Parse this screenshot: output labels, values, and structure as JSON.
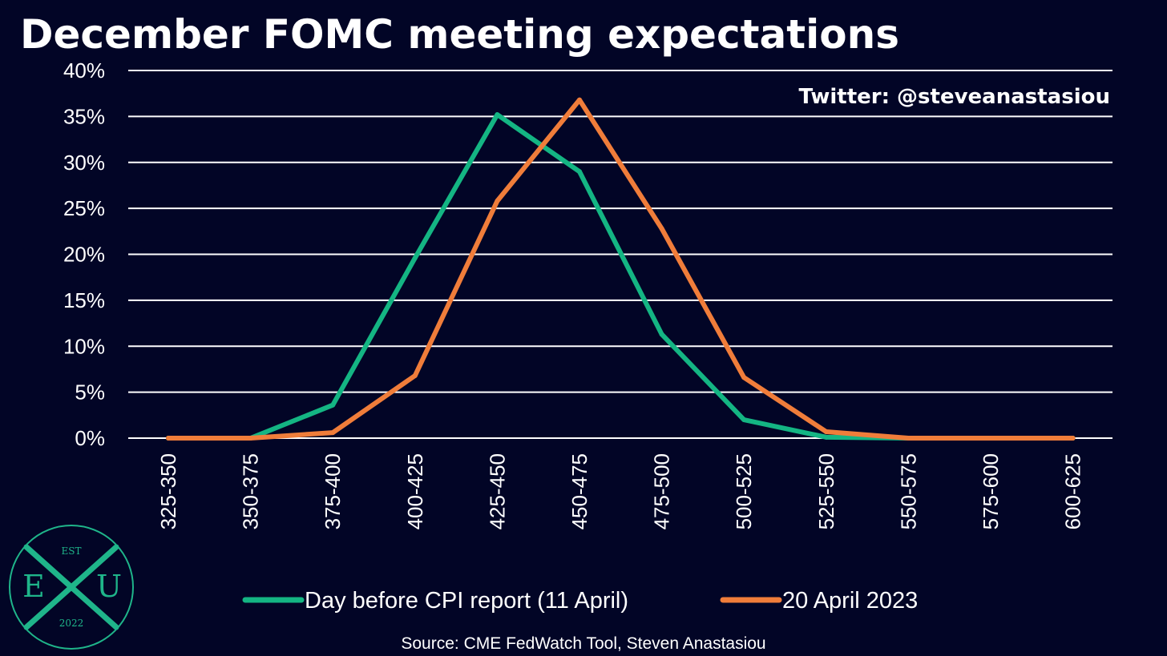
{
  "chart_data": {
    "type": "line",
    "title": "December FOMC meeting expectations",
    "categories": [
      "325-350",
      "350-375",
      "375-400",
      "400-425",
      "425-450",
      "450-475",
      "475-500",
      "500-525",
      "525-550",
      "550-575",
      "575-600",
      "600-625"
    ],
    "series": [
      {
        "name": "Day before CPI report (11 April)",
        "color": "#14b583",
        "values": [
          0,
          0,
          3.6,
          19.6,
          35.2,
          29.0,
          11.3,
          2.0,
          0.1,
          0,
          0,
          0
        ]
      },
      {
        "name": "20 April 2023",
        "color": "#f07d3a",
        "values": [
          0,
          0,
          0.6,
          6.8,
          25.8,
          36.8,
          22.8,
          6.6,
          0.7,
          0,
          0,
          0
        ]
      }
    ],
    "ylim": [
      0,
      40
    ],
    "yticks": [
      "0%",
      "5%",
      "10%",
      "15%",
      "20%",
      "25%",
      "30%",
      "35%",
      "40%"
    ],
    "grid": true,
    "legend": "bottom",
    "annotation": "Twitter: @steveanastasiou",
    "source": "Source: CME FedWatch Tool, Steven Anastasiou"
  },
  "logo": {
    "top": "EST",
    "left": "E",
    "right": "U",
    "bottom": "2022",
    "color": "#1fb58a"
  }
}
